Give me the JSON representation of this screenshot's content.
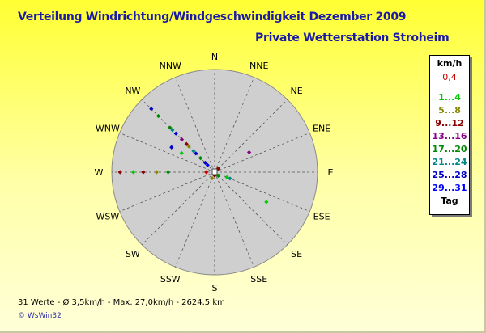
{
  "header": {
    "title": "Verteilung Windrichtung/Windgeschwindigkeit  Dezember 2009",
    "subtitle": "Private Wetterstation Stroheim"
  },
  "legend": {
    "unit": "km/h",
    "classes": [
      {
        "label": "0,4",
        "color": "#cc0000"
      },
      {
        "label": "1...4",
        "color": "#00cc00"
      },
      {
        "label": "5...8",
        "color": "#888800"
      },
      {
        "label": "9...12",
        "color": "#880000"
      },
      {
        "label": "13...16",
        "color": "#880088"
      },
      {
        "label": "17...20",
        "color": "#008800"
      },
      {
        "label": "21...24",
        "color": "#008888"
      },
      {
        "label": "25...28",
        "color": "#0000cc"
      },
      {
        "label": "29...31",
        "color": "#0000ff"
      }
    ],
    "day_label": "Tag"
  },
  "footer": {
    "stats": "31 Werte   -   Ø 3,5km/h  -  Max. 27,0km/h   -   2624.5 km",
    "credit": "© WsWin32"
  },
  "chart_data": {
    "type": "scatter",
    "polar": true,
    "directions": [
      "N",
      "NNE",
      "NE",
      "ENE",
      "E",
      "ESE",
      "SE",
      "SSE",
      "S",
      "SSW",
      "SW",
      "WSW",
      "W",
      "WNW",
      "NW",
      "NNW"
    ],
    "rmax": 31,
    "points": [
      {
        "dir": 315,
        "r": 27.0,
        "cls": 7
      },
      {
        "dir": 315,
        "r": 24.0,
        "cls": 5
      },
      {
        "dir": 315,
        "r": 19.0,
        "cls": 5
      },
      {
        "dir": 315,
        "r": 18.0,
        "cls": 6
      },
      {
        "dir": 315,
        "r": 16.5,
        "cls": 7
      },
      {
        "dir": 315,
        "r": 14.0,
        "cls": 4
      },
      {
        "dir": 315,
        "r": 12.0,
        "cls": 3
      },
      {
        "dir": 315,
        "r": 11.0,
        "cls": 2
      },
      {
        "dir": 315,
        "r": 9.0,
        "cls": 6
      },
      {
        "dir": 315,
        "r": 8.0,
        "cls": 7
      },
      {
        "dir": 315,
        "r": 6.0,
        "cls": 5
      },
      {
        "dir": 315,
        "r": 4.0,
        "cls": 7
      },
      {
        "dir": 315,
        "r": 3.0,
        "cls": 8
      },
      {
        "dir": 300,
        "r": 15.0,
        "cls": 7
      },
      {
        "dir": 300,
        "r": 11.5,
        "cls": 1
      },
      {
        "dir": 270,
        "r": 28.5,
        "cls": 3
      },
      {
        "dir": 270,
        "r": 24.5,
        "cls": 1
      },
      {
        "dir": 270,
        "r": 21.5,
        "cls": 3
      },
      {
        "dir": 270,
        "r": 17.5,
        "cls": 2
      },
      {
        "dir": 270,
        "r": 14.0,
        "cls": 5
      },
      {
        "dir": 270,
        "r": 2.5,
        "cls": 0
      },
      {
        "dir": 60,
        "r": 12.0,
        "cls": 4
      },
      {
        "dir": 45,
        "r": 1.5,
        "cls": 3
      },
      {
        "dir": 112.5,
        "r": 4.0,
        "cls": 1
      },
      {
        "dir": 112.5,
        "r": 5.0,
        "cls": 6
      },
      {
        "dir": 120,
        "r": 18.0,
        "cls": 1
      },
      {
        "dir": 202.5,
        "r": 2.0,
        "cls": 2
      },
      {
        "dir": 180,
        "r": 1.0,
        "cls": 3
      },
      {
        "dir": 135,
        "r": 1.5,
        "cls": 5
      },
      {
        "dir": 0,
        "r": 0.5,
        "cls": 0
      }
    ]
  }
}
